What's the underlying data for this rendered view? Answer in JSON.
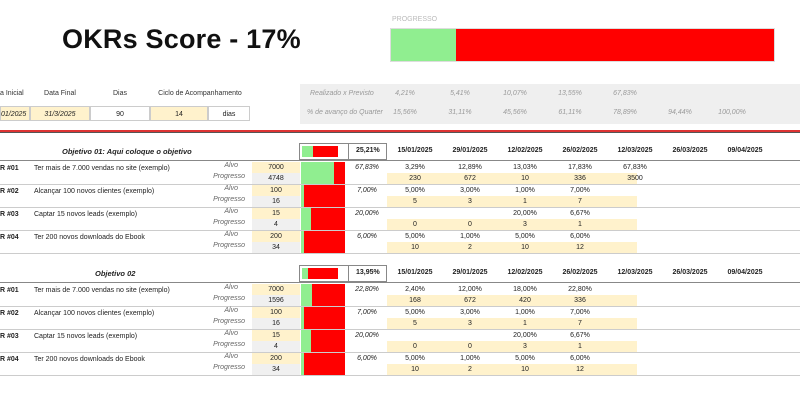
{
  "header": {
    "title": "OKRs Score - 17%",
    "progress_label": "PROGRESSO",
    "progress_fraction": 0.17
  },
  "config": {
    "headers": [
      "a Inicial",
      "Data Final",
      "Dias",
      "Ciclo de Acompanhamento"
    ],
    "values": [
      "01/2025",
      "31/3/2025",
      "90",
      "14",
      "dias"
    ]
  },
  "summary": {
    "row1_label": "Realizado x Previsto",
    "row1_values": [
      "4,21%",
      "5,41%",
      "10,07%",
      "13,55%",
      "67,83%",
      "",
      ""
    ],
    "row2_label": "% de avanço do Quarter",
    "row2_values": [
      "15,56%",
      "31,11%",
      "45,56%",
      "61,11%",
      "78,89%",
      "94,44%",
      "100,00%"
    ]
  },
  "dates": [
    "15/01/2025",
    "29/01/2025",
    "12/02/2025",
    "26/02/2025",
    "12/03/2025",
    "26/03/2025",
    "09/04/2025"
  ],
  "labels": {
    "alvo": "Alvo",
    "progresso": "Progresso"
  },
  "objectives": [
    {
      "title": "Objetivo 01: Aqui coloque o objetivo",
      "pct": "25,21%",
      "fraction": 0.25,
      "krs": [
        {
          "id": "R #01",
          "desc": "Ter mais de 7.000 vendas no site (exemplo)",
          "alvo": "7000",
          "progresso": "4748",
          "pct": "67,83%",
          "fraction": 0.68,
          "pcts": [
            "3,29%",
            "12,89%",
            "13,03%",
            "17,83%",
            "67,83%"
          ],
          "vals": [
            "230",
            "672",
            "10",
            "336",
            "3500"
          ]
        },
        {
          "id": "R #02",
          "desc": "Alcançar 100 novos clientes (exemplo)",
          "alvo": "100",
          "progresso": "16",
          "pct": "7,00%",
          "fraction": 0.07,
          "pcts": [
            "5,00%",
            "3,00%",
            "1,00%",
            "7,00%",
            ""
          ],
          "vals": [
            "5",
            "3",
            "1",
            "7",
            ""
          ]
        },
        {
          "id": "R #03",
          "desc": "Captar 15 novos leads (exemplo)",
          "alvo": "15",
          "progresso": "4",
          "pct": "20,00%",
          "fraction": 0.2,
          "pcts": [
            "",
            "",
            "20,00%",
            "6,67%",
            ""
          ],
          "vals": [
            "0",
            "0",
            "3",
            "1",
            ""
          ]
        },
        {
          "id": "R #04",
          "desc": "Ter 200 novos downloads do Ebook",
          "alvo": "200",
          "progresso": "34",
          "pct": "6,00%",
          "fraction": 0.06,
          "pcts": [
            "5,00%",
            "1,00%",
            "5,00%",
            "6,00%",
            ""
          ],
          "vals": [
            "10",
            "2",
            "10",
            "12",
            ""
          ]
        }
      ]
    },
    {
      "title": "Objetivo 02",
      "pct": "13,95%",
      "fraction": 0.14,
      "krs": [
        {
          "id": "R #01",
          "desc": "Ter mais de 7.000 vendas no site (exemplo)",
          "alvo": "7000",
          "progresso": "1596",
          "pct": "22,80%",
          "fraction": 0.23,
          "pcts": [
            "2,40%",
            "12,00%",
            "18,00%",
            "22,80%",
            ""
          ],
          "vals": [
            "168",
            "672",
            "420",
            "336",
            ""
          ]
        },
        {
          "id": "R #02",
          "desc": "Alcançar 100 novos clientes (exemplo)",
          "alvo": "100",
          "progresso": "16",
          "pct": "7,00%",
          "fraction": 0.07,
          "pcts": [
            "5,00%",
            "3,00%",
            "1,00%",
            "7,00%",
            ""
          ],
          "vals": [
            "5",
            "3",
            "1",
            "7",
            ""
          ]
        },
        {
          "id": "R #03",
          "desc": "Captar 15 novos leads (exemplo)",
          "alvo": "15",
          "progresso": "4",
          "pct": "20,00%",
          "fraction": 0.2,
          "pcts": [
            "",
            "",
            "20,00%",
            "6,67%",
            ""
          ],
          "vals": [
            "0",
            "0",
            "3",
            "1",
            ""
          ]
        },
        {
          "id": "R #04",
          "desc": "Ter 200 novos downloads do Ebook",
          "alvo": "200",
          "progresso": "34",
          "pct": "6,00%",
          "fraction": 0.06,
          "pcts": [
            "5,00%",
            "1,00%",
            "5,00%",
            "6,00%",
            ""
          ],
          "vals": [
            "10",
            "2",
            "10",
            "12",
            ""
          ]
        }
      ]
    }
  ],
  "colors": {
    "done": "#90ee90",
    "remaining": "#ff0000",
    "input_bg": "#fff2cc"
  }
}
